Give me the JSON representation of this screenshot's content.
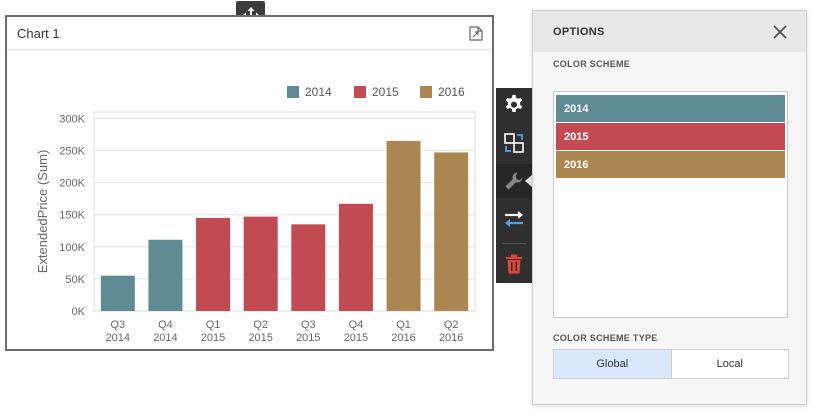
{
  "chart_card": {
    "title": "Chart 1"
  },
  "chart_data": {
    "type": "bar",
    "categories": [
      [
        "Q3",
        "2014"
      ],
      [
        "Q4",
        "2014"
      ],
      [
        "Q1",
        "2015"
      ],
      [
        "Q2",
        "2015"
      ],
      [
        "Q3",
        "2015"
      ],
      [
        "Q4",
        "2015"
      ],
      [
        "Q1",
        "2016"
      ],
      [
        "Q2",
        "2016"
      ]
    ],
    "values": [
      55000,
      111000,
      145000,
      147000,
      135000,
      167000,
      265000,
      247000
    ],
    "series_of_category": [
      "2014",
      "2014",
      "2015",
      "2015",
      "2015",
      "2015",
      "2016",
      "2016"
    ],
    "legend": [
      "2014",
      "2015",
      "2016"
    ],
    "ylabel": "ExtendedPrice (Sum)",
    "yticks": [
      "0K",
      "50K",
      "100K",
      "150K",
      "200K",
      "250K",
      "300K"
    ],
    "ylim": [
      0,
      310000
    ],
    "legend_position": "top-right",
    "grid": true
  },
  "colors": {
    "2014": "#5e8b94",
    "2015": "#c14a53",
    "2016": "#ac8650"
  },
  "toolbar": {
    "icons": [
      "gear-icon",
      "swap-layout-icon",
      "wrench-icon",
      "swap-arrows-icon",
      "trash-icon"
    ]
  },
  "options": {
    "title": "OPTIONS",
    "color_scheme_label": "COLOR SCHEME",
    "scheme_items": [
      {
        "label": "2014",
        "color": "#5e8b94"
      },
      {
        "label": "2015",
        "color": "#c14a53"
      },
      {
        "label": "2016",
        "color": "#ac8650"
      }
    ],
    "color_scheme_type_label": "COLOR SCHEME TYPE",
    "type_options": [
      "Global",
      "Local"
    ],
    "selected_type": "Global"
  }
}
